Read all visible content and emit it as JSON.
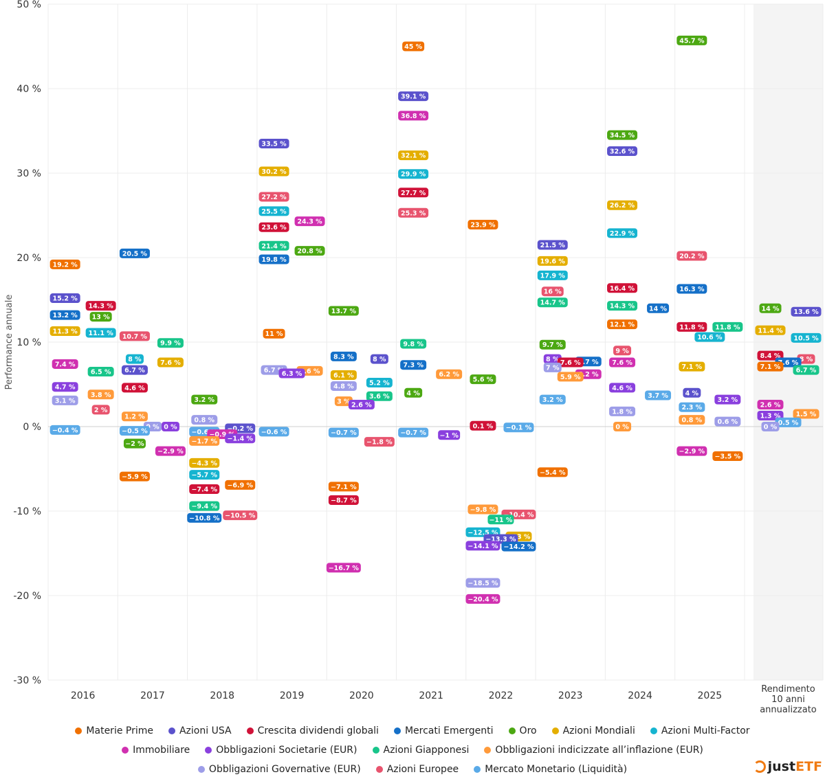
{
  "chart_data": {
    "type": "scatter",
    "ylabel": "Performance annuale",
    "ylim": [
      -30,
      50
    ],
    "y_ticks": [
      50,
      40,
      30,
      20,
      10,
      0,
      -10,
      -20,
      -30
    ],
    "y_tick_labels": [
      "50 %",
      "40 %",
      "30 %",
      "20 %",
      "10 %",
      "0 %",
      "-10 %",
      "-20 %",
      "-30 %"
    ],
    "grid": true,
    "legend_placement": "bottom",
    "categories": [
      "2016",
      "2017",
      "2018",
      "2019",
      "2020",
      "2021",
      "2022",
      "2023",
      "2024",
      "2025",
      "Rendimento 10 anni annualizzato"
    ],
    "category_lines": [
      [
        "2016"
      ],
      [
        "2017"
      ],
      [
        "2018"
      ],
      [
        "2019"
      ],
      [
        "2020"
      ],
      [
        "2021"
      ],
      [
        "2022"
      ],
      [
        "2023"
      ],
      [
        "2024"
      ],
      [
        "2025"
      ],
      [
        "Rendimento",
        "10 anni",
        "annualizzato"
      ]
    ],
    "series": [
      {
        "name": "Materie Prime",
        "color": "#f07000",
        "values": [
          19.2,
          -5.9,
          -6.9,
          11,
          -7.1,
          45,
          23.9,
          -5.4,
          12.1,
          -3.5,
          7.1
        ]
      },
      {
        "name": "Azioni USA",
        "color": "#5b52cc",
        "values": [
          15.2,
          6.7,
          -0.2,
          33.5,
          8,
          39.1,
          -13.3,
          21.5,
          32.6,
          4,
          13.6
        ]
      },
      {
        "name": "Crescita dividendi globali",
        "color": "#d01238",
        "values": [
          14.3,
          4.6,
          -7.4,
          23.6,
          -8.7,
          27.7,
          0.1,
          7.6,
          16.4,
          11.8,
          8.4
        ]
      },
      {
        "name": "Mercati Emergenti",
        "color": "#1570c8",
        "values": [
          13.2,
          20.5,
          -10.8,
          19.8,
          8.3,
          7.3,
          -14.2,
          7.7,
          14,
          16.3,
          7.6
        ]
      },
      {
        "name": "Oro",
        "color": "#4ca812",
        "values": [
          13,
          -2,
          3.2,
          20.8,
          13.7,
          4,
          5.6,
          9.7,
          34.5,
          45.7,
          14
        ]
      },
      {
        "name": "Azioni Mondiali",
        "color": "#e4ae00",
        "values": [
          11.3,
          7.6,
          -4.3,
          30.2,
          6.1,
          32.1,
          -13,
          19.6,
          26.2,
          7.1,
          11.4
        ]
      },
      {
        "name": "Azioni Multi-Factor",
        "color": "#16b4d0",
        "values": [
          11.1,
          8,
          -5.7,
          25.5,
          5.2,
          29.9,
          -12.5,
          17.9,
          22.9,
          10.6,
          10.5
        ]
      },
      {
        "name": "Immobiliare",
        "color": "#d030b0",
        "values": [
          7.4,
          -2.9,
          -0.9,
          24.3,
          -16.7,
          36.8,
          -20.4,
          6.2,
          7.6,
          -2.9,
          2.6
        ]
      },
      {
        "name": "Obbligazioni Societarie (EUR)",
        "color": "#8a40de",
        "values": [
          4.7,
          0,
          -1.4,
          6.3,
          2.6,
          -1,
          -14.1,
          8,
          4.6,
          3.2,
          1.3
        ]
      },
      {
        "name": "Azioni Giapponesi",
        "color": "#18c58a",
        "values": [
          6.5,
          9.9,
          -9.4,
          21.4,
          3.6,
          9.8,
          -11,
          14.7,
          14.3,
          11.8,
          6.7
        ]
      },
      {
        "name": "Obbligazioni indicizzate all’inflazione (EUR)",
        "color": "#ff9a3a",
        "values": [
          3.8,
          1.2,
          -1.7,
          6.6,
          3,
          6.2,
          -9.8,
          5.9,
          0,
          0.8,
          1.5
        ]
      },
      {
        "name": "Obbligazioni Governative (EUR)",
        "color": "#9d9de8",
        "values": [
          3.1,
          0,
          0.8,
          6.7,
          4.8,
          null,
          -18.5,
          7,
          1.8,
          0.6,
          0
        ]
      },
      {
        "name": "Azioni Europee",
        "color": "#e8546e",
        "values": [
          2,
          10.7,
          -10.5,
          27.2,
          -1.8,
          25.3,
          -10.4,
          16,
          9,
          20.2,
          8
        ]
      },
      {
        "name": "Mercato Monetario (Liquidità)",
        "color": "#5aaae8",
        "values": [
          -0.4,
          -0.5,
          -0.6,
          -0.6,
          -0.7,
          -0.7,
          -0.1,
          3.2,
          3.7,
          2.3,
          0.5
        ]
      }
    ]
  },
  "legend_rows": [
    [
      0,
      1,
      2,
      3,
      4,
      5,
      6
    ],
    [
      7,
      8,
      9,
      10
    ],
    [
      11,
      12,
      13
    ]
  ],
  "logo": {
    "text_a": "just",
    "text_b": "ETF",
    "accent": "#f07a12"
  }
}
